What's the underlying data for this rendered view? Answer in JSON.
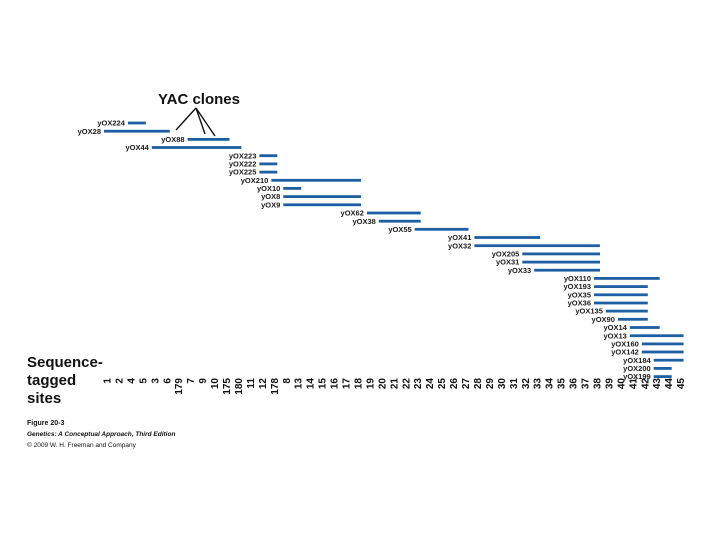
{
  "yac_title": "YAC clones",
  "sts_title": "Sequence-\ntagged\nsites",
  "caption": {
    "figure": "Figure 20-3",
    "book": "Genetics: A Conceptual Approach, Third Edition",
    "copyright": "© 2009 W. H. Freeman and Company"
  },
  "colors": {
    "bar": "#1e5fa3",
    "text": "#111111"
  },
  "sites": [
    "1",
    "2",
    "4",
    "5",
    "3",
    "6",
    "179",
    "7",
    "9",
    "10",
    "175",
    "180",
    "11",
    "12",
    "178",
    "8",
    "13",
    "14",
    "15",
    "16",
    "17",
    "18",
    "19",
    "20",
    "21",
    "22",
    "23",
    "24",
    "25",
    "26",
    "27",
    "28",
    "29",
    "30",
    "31",
    "32",
    "33",
    "34",
    "35",
    "36",
    "37",
    "38",
    "39",
    "40",
    "41",
    "42",
    "43",
    "44",
    "45"
  ],
  "clones": [
    {
      "name": "yOX224",
      "start": "4",
      "end": "5"
    },
    {
      "name": "yOX28",
      "start": "1",
      "end": "6"
    },
    {
      "name": "yOX88",
      "start": "7",
      "end": "175"
    },
    {
      "name": "yOX44",
      "start": "3",
      "end": "180"
    },
    {
      "name": "yOX223",
      "start": "12",
      "end": "178"
    },
    {
      "name": "yOX222",
      "start": "12",
      "end": "178"
    },
    {
      "name": "yOX225",
      "start": "12",
      "end": "178"
    },
    {
      "name": "yOX210",
      "start": "178",
      "end": "18"
    },
    {
      "name": "yOX10",
      "start": "8",
      "end": "13"
    },
    {
      "name": "yOX8",
      "start": "8",
      "end": "18"
    },
    {
      "name": "yOX9",
      "start": "8",
      "end": "18"
    },
    {
      "name": "yOX62",
      "start": "19",
      "end": "23"
    },
    {
      "name": "yOX38",
      "start": "20",
      "end": "23"
    },
    {
      "name": "yOX55",
      "start": "23",
      "end": "27"
    },
    {
      "name": "yOX41",
      "start": "28",
      "end": "33"
    },
    {
      "name": "yOX32",
      "start": "28",
      "end": "38"
    },
    {
      "name": "yOX205",
      "start": "32",
      "end": "38"
    },
    {
      "name": "yOX31",
      "start": "32",
      "end": "38"
    },
    {
      "name": "yOX33",
      "start": "33",
      "end": "38"
    },
    {
      "name": "yOX110",
      "start": "38",
      "end": "43"
    },
    {
      "name": "yOX193",
      "start": "38",
      "end": "42"
    },
    {
      "name": "yOX35",
      "start": "38",
      "end": "42"
    },
    {
      "name": "yOX36",
      "start": "38",
      "end": "42"
    },
    {
      "name": "yOX135",
      "start": "39",
      "end": "42"
    },
    {
      "name": "yOX90",
      "start": "40",
      "end": "42"
    },
    {
      "name": "yOX14",
      "start": "41",
      "end": "43"
    },
    {
      "name": "yOX13",
      "start": "41",
      "end": "45"
    },
    {
      "name": "yOX160",
      "start": "42",
      "end": "45"
    },
    {
      "name": "yOX142",
      "start": "42",
      "end": "45"
    },
    {
      "name": "yOX184",
      "start": "43",
      "end": "45"
    },
    {
      "name": "yOX200",
      "start": "43",
      "end": "44"
    },
    {
      "name": "yOX199",
      "start": "43",
      "end": "44"
    }
  ]
}
